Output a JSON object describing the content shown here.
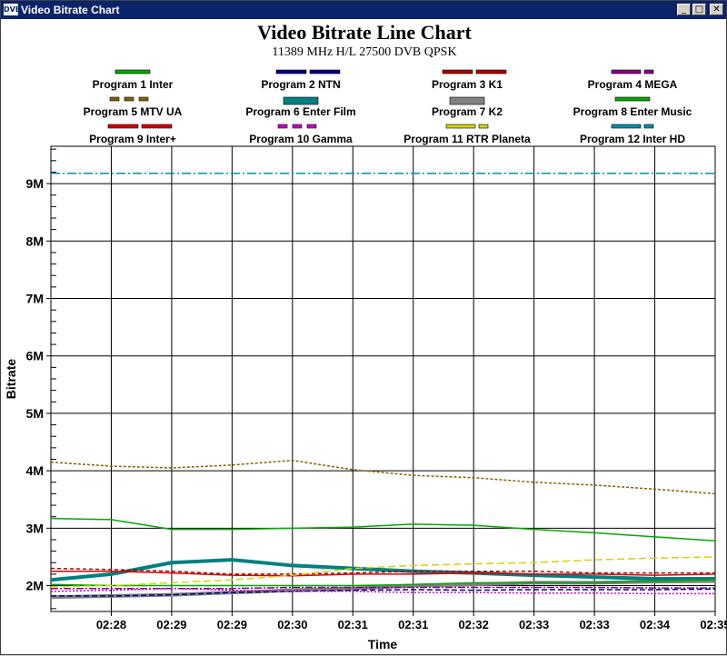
{
  "window": {
    "title": "Video Bitrate Chart",
    "icon_text": "DVB",
    "minimize": "_",
    "maximize": "□",
    "close": "✕"
  },
  "chart_data": {
    "type": "line",
    "title": "Video Bitrate Line Chart",
    "subtitle": "11389 MHz H/L 27500 DVB QPSK",
    "xlabel": "Time",
    "ylabel": "Bitrate",
    "x_tick_labels": [
      "02:28",
      "02:29",
      "02:29",
      "02:30",
      "02:31",
      "02:31",
      "02:32",
      "02:33",
      "02:33",
      "02:34",
      "02:35"
    ],
    "y_tick_labels": [
      "2M",
      "3M",
      "4M",
      "5M",
      "6M",
      "7M",
      "8M",
      "9M"
    ],
    "y_tick_values": [
      2,
      3,
      4,
      5,
      6,
      7,
      8,
      9
    ],
    "ylim": [
      1.55,
      9.65
    ],
    "xlim": [
      0,
      11
    ],
    "x_tick_positions": [
      1,
      2,
      3,
      4,
      5,
      6,
      7,
      8,
      9,
      10,
      11
    ],
    "grid": true,
    "legend_position": "top",
    "x": [
      0,
      1,
      2,
      3,
      4,
      5,
      6,
      7,
      8,
      9,
      10,
      11
    ],
    "series": [
      {
        "name": "Program 1 Inter",
        "color": "#00aa00",
        "dash": "",
        "values": [
          3.17,
          3.15,
          2.98,
          2.98,
          3.0,
          3.02,
          3.07,
          3.05,
          2.98,
          2.92,
          2.85,
          2.78
        ]
      },
      {
        "name": "Program 2 NTN",
        "color": "#000080",
        "dash": "6 3",
        "values": [
          1.82,
          1.82,
          1.84,
          1.88,
          1.9,
          1.92,
          1.93,
          1.92,
          1.93,
          1.93,
          1.93,
          1.94
        ]
      },
      {
        "name": "Program 3 K1",
        "color": "#aa0000",
        "dash": "4 3",
        "values": [
          2.3,
          2.28,
          2.25,
          2.2,
          2.2,
          2.22,
          2.25,
          2.25,
          2.25,
          2.22,
          2.22,
          2.22
        ]
      },
      {
        "name": "Program 4 MEGA",
        "color": "#880088",
        "dash": "8 2 2 2",
        "values": [
          1.95,
          1.95,
          1.95,
          1.95,
          1.97,
          1.97,
          1.97,
          1.97,
          1.97,
          1.97,
          1.96,
          1.96
        ]
      },
      {
        "name": "Program 5 MTV UA",
        "color": "#806600",
        "dash": "3 2",
        "values": [
          4.15,
          4.08,
          4.05,
          4.1,
          4.18,
          4.02,
          3.92,
          3.88,
          3.8,
          3.75,
          3.68,
          3.6
        ]
      },
      {
        "name": "Program 6 Enter Film",
        "color": "#008080",
        "dash": "",
        "values": [
          2.1,
          2.2,
          2.4,
          2.45,
          2.35,
          2.3,
          2.25,
          2.22,
          2.18,
          2.15,
          2.12,
          2.12
        ]
      },
      {
        "name": "Program 7 K2",
        "color": "#808080",
        "dash": "",
        "values": [
          1.8,
          1.82,
          1.84,
          1.88,
          1.92,
          1.95,
          2.0,
          2.02,
          2.05,
          2.05,
          2.07,
          2.08
        ]
      },
      {
        "name": "Program 8 Enter Music",
        "color": "#00aa00",
        "dash": "",
        "values": [
          2.02,
          2.0,
          2.0,
          2.0,
          2.0,
          2.0,
          2.02,
          2.05,
          2.05,
          2.05,
          2.08,
          2.1
        ]
      },
      {
        "name": "Program 9 Inter+",
        "color": "#dd0000",
        "dash": "",
        "values": [
          2.25,
          2.25,
          2.22,
          2.18,
          2.17,
          2.2,
          2.2,
          2.22,
          2.2,
          2.2,
          2.18,
          2.2
        ]
      },
      {
        "name": "Program 10 Gamma",
        "color": "#cc00cc",
        "dash": "2 2",
        "values": [
          1.9,
          1.92,
          1.95,
          1.92,
          1.9,
          1.9,
          1.88,
          1.88,
          1.87,
          1.87,
          1.86,
          1.86
        ]
      },
      {
        "name": "Program 11 RTR Planeta",
        "color": "#d4d400",
        "dash": "8 4",
        "values": [
          1.98,
          2.0,
          2.05,
          2.1,
          2.18,
          2.3,
          2.35,
          2.38,
          2.4,
          2.45,
          2.48,
          2.5
        ]
      },
      {
        "name": "Program 12 Inter HD",
        "color": "#0090b0",
        "dash": "10 3 2 3",
        "values": [
          9.18,
          9.18,
          9.18,
          9.18,
          9.18,
          9.18,
          9.18,
          9.18,
          9.18,
          9.18,
          9.18,
          9.18
        ]
      }
    ]
  },
  "legend_swatches": [
    {
      "color": "#00aa00",
      "style": "solid"
    },
    {
      "color": "#000080",
      "style": "dash"
    },
    {
      "color": "#aa0000",
      "style": "dash"
    },
    {
      "color": "#880088",
      "style": "dashdot"
    },
    {
      "color": "#806600",
      "style": "dot"
    },
    {
      "color": "#008080",
      "style": "solid-thick"
    },
    {
      "color": "#808080",
      "style": "solid-thick"
    },
    {
      "color": "#00aa00",
      "style": "solid"
    },
    {
      "color": "#dd0000",
      "style": "dash"
    },
    {
      "color": "#cc00cc",
      "style": "dot"
    },
    {
      "color": "#d4d400",
      "style": "dashdot"
    },
    {
      "color": "#0090b0",
      "style": "dashdot"
    }
  ]
}
